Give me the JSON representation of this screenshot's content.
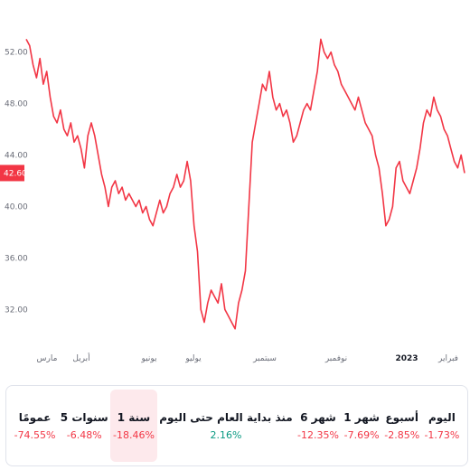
{
  "chart_data": {
    "type": "line",
    "x_labels": [
      "مارس",
      "أبريل",
      "يونيو",
      "يوليو",
      "سبتمبر",
      "نوفمبر",
      "2023",
      "فبراير"
    ],
    "y_ticks": [
      "32.00",
      "36.00",
      "40.00",
      "44.00",
      "48.00",
      "52.00"
    ],
    "ylim": [
      29.5,
      54.5
    ],
    "current_price": "42.60",
    "line_color": "#f23645",
    "values": [
      53.0,
      52.5,
      51.0,
      50.0,
      51.5,
      49.5,
      50.5,
      48.5,
      47.0,
      46.5,
      47.5,
      46.0,
      45.5,
      46.5,
      45.0,
      45.5,
      44.5,
      43.0,
      45.5,
      46.5,
      45.5,
      44.0,
      42.5,
      41.5,
      40.0,
      41.5,
      42.0,
      41.0,
      41.5,
      40.5,
      41.0,
      40.5,
      40.0,
      40.5,
      39.5,
      40.0,
      39.0,
      38.5,
      39.5,
      40.5,
      39.5,
      40.0,
      41.0,
      41.5,
      42.5,
      41.5,
      42.0,
      43.5,
      42.0,
      38.5,
      36.5,
      32.0,
      31.0,
      32.5,
      33.5,
      33.0,
      32.5,
      34.0,
      32.0,
      31.5,
      31.0,
      30.5,
      32.5,
      33.5,
      35.0,
      40.0,
      45.0,
      46.5,
      48.0,
      49.5,
      49.0,
      50.5,
      48.5,
      47.5,
      48.0,
      47.0,
      47.5,
      46.5,
      45.0,
      45.5,
      46.5,
      47.5,
      48.0,
      47.5,
      49.0,
      50.5,
      53.0,
      52.0,
      51.5,
      52.0,
      51.0,
      50.5,
      49.5,
      49.0,
      48.5,
      48.0,
      47.5,
      48.5,
      47.5,
      46.5,
      46.0,
      45.5,
      44.0,
      43.0,
      41.0,
      38.5,
      39.0,
      40.0,
      43.0,
      43.5,
      42.0,
      41.5,
      41.0,
      42.0,
      43.0,
      44.5,
      46.5,
      47.5,
      47.0,
      48.5,
      47.5,
      47.0,
      46.0,
      45.5,
      44.5,
      43.5,
      43.0,
      44.0,
      42.6
    ]
  },
  "periods": [
    {
      "label": "اليوم",
      "value": "-1.73%",
      "tone": "neg",
      "active": false
    },
    {
      "label": "أسبوع",
      "value": "-2.85%",
      "tone": "neg",
      "active": false
    },
    {
      "label": "1 شهر",
      "value": "-7.69%",
      "tone": "neg",
      "active": false
    },
    {
      "label": "6 شهر",
      "value": "-12.35%",
      "tone": "neg",
      "active": false
    },
    {
      "label": "منذ بداية العام حتى اليوم",
      "value": "2.16%",
      "tone": "pos",
      "active": false
    },
    {
      "label": "1 سنة",
      "value": "-18.46%",
      "tone": "neg",
      "active": true
    },
    {
      "label": "5 سنوات",
      "value": "-6.48%",
      "tone": "neg",
      "active": false
    },
    {
      "label": "عمومًا",
      "value": "-74.55%",
      "tone": "neg",
      "active": false
    }
  ]
}
